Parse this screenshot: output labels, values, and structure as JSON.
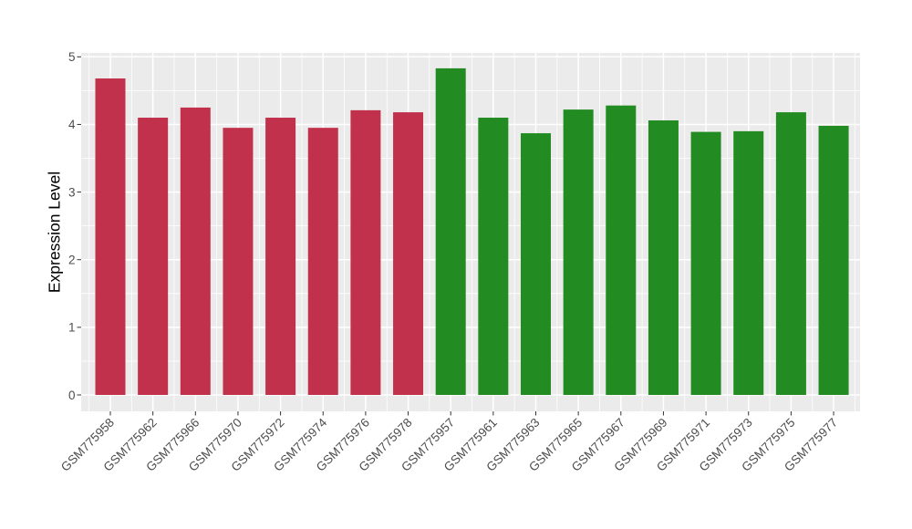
{
  "chart_data": {
    "type": "bar",
    "title": "",
    "xlabel": "",
    "ylabel": "Expression Level",
    "ylim": [
      0,
      5
    ],
    "yticks": [
      0,
      1,
      2,
      3,
      4,
      5
    ],
    "grid": true,
    "legend": false,
    "categories": [
      "GSM775958",
      "GSM775962",
      "GSM775966",
      "GSM775970",
      "GSM775972",
      "GSM775974",
      "GSM775976",
      "GSM775978",
      "GSM775957",
      "GSM775961",
      "GSM775963",
      "GSM775965",
      "GSM775967",
      "GSM775969",
      "GSM775971",
      "GSM775973",
      "GSM775975",
      "GSM775977"
    ],
    "values": [
      4.68,
      4.1,
      4.25,
      3.95,
      4.1,
      3.95,
      4.21,
      4.18,
      4.83,
      4.1,
      3.87,
      4.22,
      4.28,
      4.06,
      3.89,
      3.9,
      4.18,
      3.98
    ],
    "bars": [
      {
        "label": "GSM775958",
        "value": 4.68,
        "group": "group1"
      },
      {
        "label": "GSM775962",
        "value": 4.1,
        "group": "group1"
      },
      {
        "label": "GSM775966",
        "value": 4.25,
        "group": "group1"
      },
      {
        "label": "GSM775970",
        "value": 3.95,
        "group": "group1"
      },
      {
        "label": "GSM775972",
        "value": 4.1,
        "group": "group1"
      },
      {
        "label": "GSM775974",
        "value": 3.95,
        "group": "group1"
      },
      {
        "label": "GSM775976",
        "value": 4.21,
        "group": "group1"
      },
      {
        "label": "GSM775978",
        "value": 4.18,
        "group": "group1"
      },
      {
        "label": "GSM775957",
        "value": 4.83,
        "group": "group2"
      },
      {
        "label": "GSM775961",
        "value": 4.1,
        "group": "group2"
      },
      {
        "label": "GSM775963",
        "value": 3.87,
        "group": "group2"
      },
      {
        "label": "GSM775965",
        "value": 4.22,
        "group": "group2"
      },
      {
        "label": "GSM775967",
        "value": 4.28,
        "group": "group2"
      },
      {
        "label": "GSM775969",
        "value": 4.06,
        "group": "group2"
      },
      {
        "label": "GSM775971",
        "value": 3.89,
        "group": "group2"
      },
      {
        "label": "GSM775973",
        "value": 3.9,
        "group": "group2"
      },
      {
        "label": "GSM775975",
        "value": 4.18,
        "group": "group2"
      },
      {
        "label": "GSM775977",
        "value": 3.98,
        "group": "group2"
      }
    ],
    "group_colors": {
      "group1": "#C2314C",
      "group2": "#228B22"
    },
    "style": {
      "panel_background": "#EBEBEB",
      "grid_color": "#FFFFFF",
      "tick_color": "#333333",
      "axis_text_color": "#4D4D4D",
      "axis_title_color": "#000000",
      "figure_background": "#FFFFFF"
    }
  }
}
